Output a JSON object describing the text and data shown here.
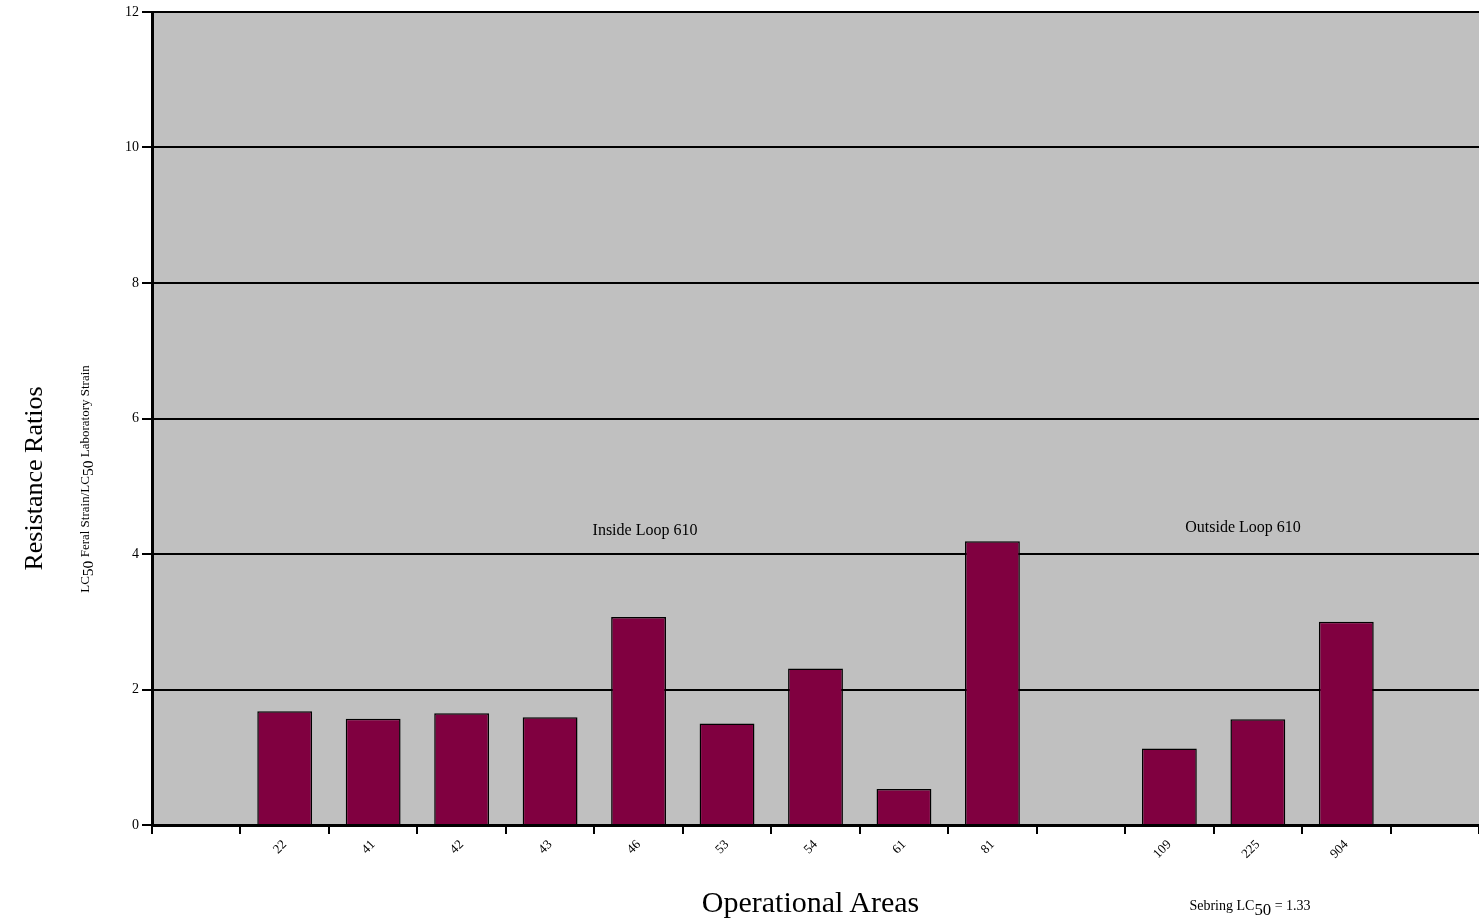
{
  "chart_data": {
    "type": "bar",
    "categories": [
      null,
      "22",
      "41",
      "42",
      "43",
      "46",
      "53",
      "54",
      "61",
      "81",
      null,
      "109",
      "225",
      "904",
      null
    ],
    "values": [
      null,
      1.68,
      1.57,
      1.65,
      1.59,
      3.07,
      1.5,
      2.31,
      0.53,
      4.19,
      null,
      1.13,
      1.56,
      3.0,
      null
    ],
    "color": "#800040",
    "xlabel": "Operational Areas",
    "ylabel": "Resistance Ratios",
    "ylim": [
      0,
      12
    ],
    "yticks": [
      0,
      2,
      4,
      6,
      8,
      10,
      12
    ],
    "grid": "y",
    "legend": false,
    "annotations": [
      "LC$_{50}$ Feral Strain/LC$_{50}$ Laboratory Strain",
      "Sebring LC$_{50}$ = 1.33",
      "Inside Loop 610",
      "Outside Loop 610"
    ]
  }
}
